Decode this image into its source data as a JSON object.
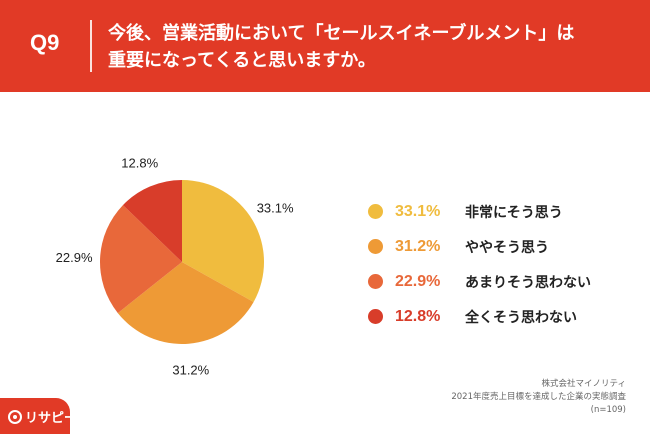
{
  "header": {
    "question_no": "Q9",
    "title_line1": "今後、営業活動において「セールスイネーブルメント」は",
    "title_line2": "重要になってくると思いますか。"
  },
  "chart_data": {
    "type": "pie",
    "title": "今後、営業活動において「セールスイネーブルメント」は重要になってくると思いますか。",
    "slices": [
      {
        "label": "非常にそう思う",
        "value": 33.1,
        "display": "33.1%",
        "color": "#F0BC3E"
      },
      {
        "label": "ややそう思う",
        "value": 31.2,
        "display": "31.2%",
        "color": "#EE9A36"
      },
      {
        "label": "あまりそう思わない",
        "value": 22.9,
        "display": "22.9%",
        "color": "#E8683A"
      },
      {
        "label": "全くそう思わない",
        "value": 12.8,
        "display": "12.8%",
        "color": "#D83D2A"
      }
    ]
  },
  "footnote": {
    "company": "株式会社マイノリティ",
    "survey": "2021年度売上目標を達成した企業の実態調査",
    "sample": "(n=109)"
  },
  "logo": {
    "text": "リサピー"
  }
}
